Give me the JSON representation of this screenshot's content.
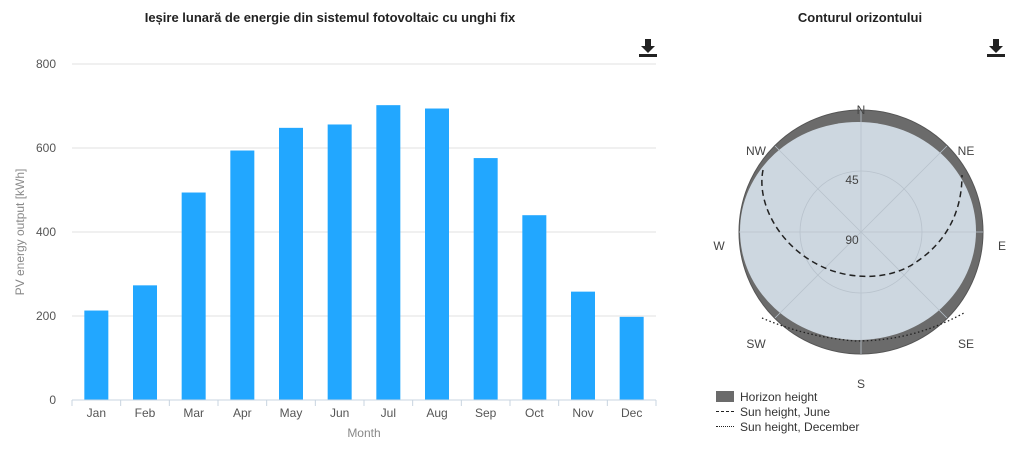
{
  "bar_panel": {
    "title": "Ieșire lunară de energie din sistemul fotovoltaic cu unghi fix"
  },
  "horizon_panel": {
    "title": "Conturul orizontului",
    "compass": {
      "N": "N",
      "NE": "NE",
      "E": "E",
      "SE": "SE",
      "S": "S",
      "SW": "SW",
      "W": "W",
      "NW": "NW"
    },
    "ring_labels": {
      "r45": "45",
      "r90": "90"
    },
    "legend": {
      "horizon": "Horizon height",
      "june": "Sun height, June",
      "december": "Sun height, December"
    }
  },
  "icons": {
    "download": "download-icon"
  },
  "colors": {
    "bar": "#22a7ff",
    "disc": "#cdd7e0",
    "horizon_band": "#6b6b6b"
  },
  "chart_data": [
    {
      "type": "bar",
      "title": "Ieșire lunară de energie din sistemul fotovoltaic cu unghi fix",
      "xlabel": "Month",
      "ylabel": "PV energy output [kWh]",
      "ylim": [
        0,
        800
      ],
      "yticks": [
        "0",
        "200",
        "400",
        "600",
        "800"
      ],
      "categories": [
        "Jan",
        "Feb",
        "Mar",
        "Apr",
        "May",
        "Jun",
        "Jul",
        "Aug",
        "Sep",
        "Oct",
        "Nov",
        "Dec"
      ],
      "values": [
        213,
        273,
        494,
        594,
        648,
        656,
        702,
        694,
        576,
        440,
        258,
        198
      ],
      "grid": true
    },
    {
      "type": "polar",
      "title": "Conturul orizontului",
      "series": [
        {
          "name": "Horizon height",
          "style": "filled"
        },
        {
          "name": "Sun height, June",
          "style": "dashed"
        },
        {
          "name": "Sun height, December",
          "style": "dotted"
        }
      ]
    }
  ]
}
